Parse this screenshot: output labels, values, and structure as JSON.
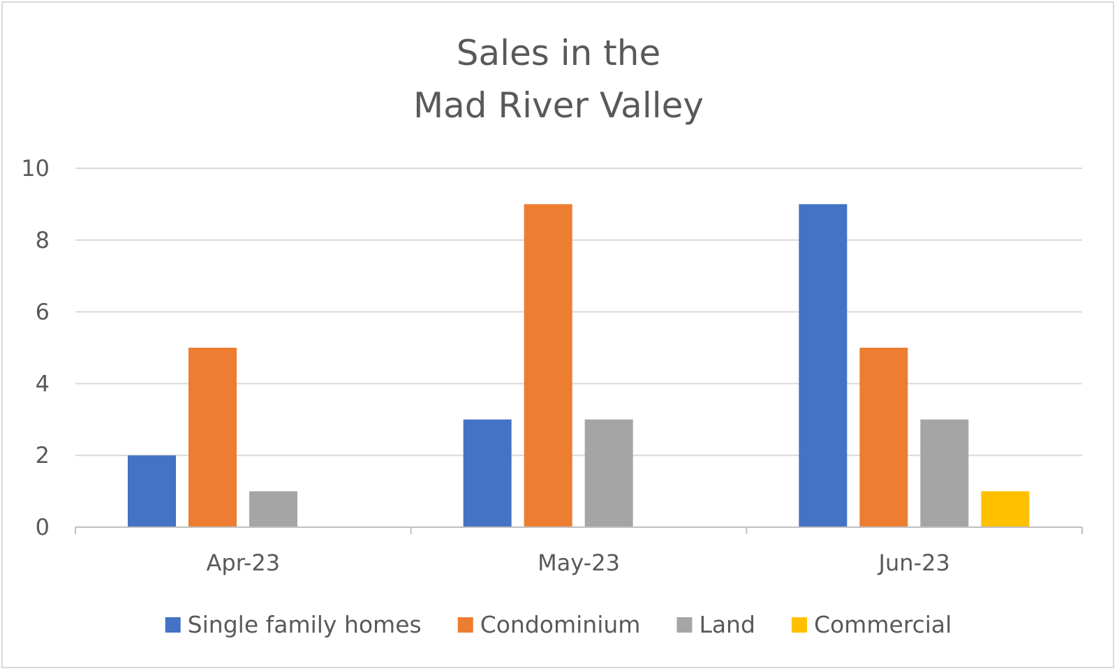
{
  "chart_data": {
    "type": "bar",
    "title_lines": [
      "Sales in the",
      "Mad River Valley"
    ],
    "categories": [
      "Apr-23",
      "May-23",
      "Jun-23"
    ],
    "series": [
      {
        "name": "Single family homes",
        "values": [
          2,
          3,
          9
        ],
        "color": "#4472c4"
      },
      {
        "name": "Condominium",
        "values": [
          5,
          9,
          5
        ],
        "color": "#ed7d31"
      },
      {
        "name": "Land",
        "values": [
          1,
          3,
          3
        ],
        "color": "#a5a5a5"
      },
      {
        "name": "Commercial",
        "values": [
          null,
          null,
          1
        ],
        "color": "#ffc000"
      }
    ],
    "ylim": [
      0,
      10
    ],
    "yticks": [
      0,
      2,
      4,
      6,
      8,
      10
    ],
    "grid": true,
    "legend": "bottom",
    "xlabel": "",
    "ylabel": ""
  }
}
